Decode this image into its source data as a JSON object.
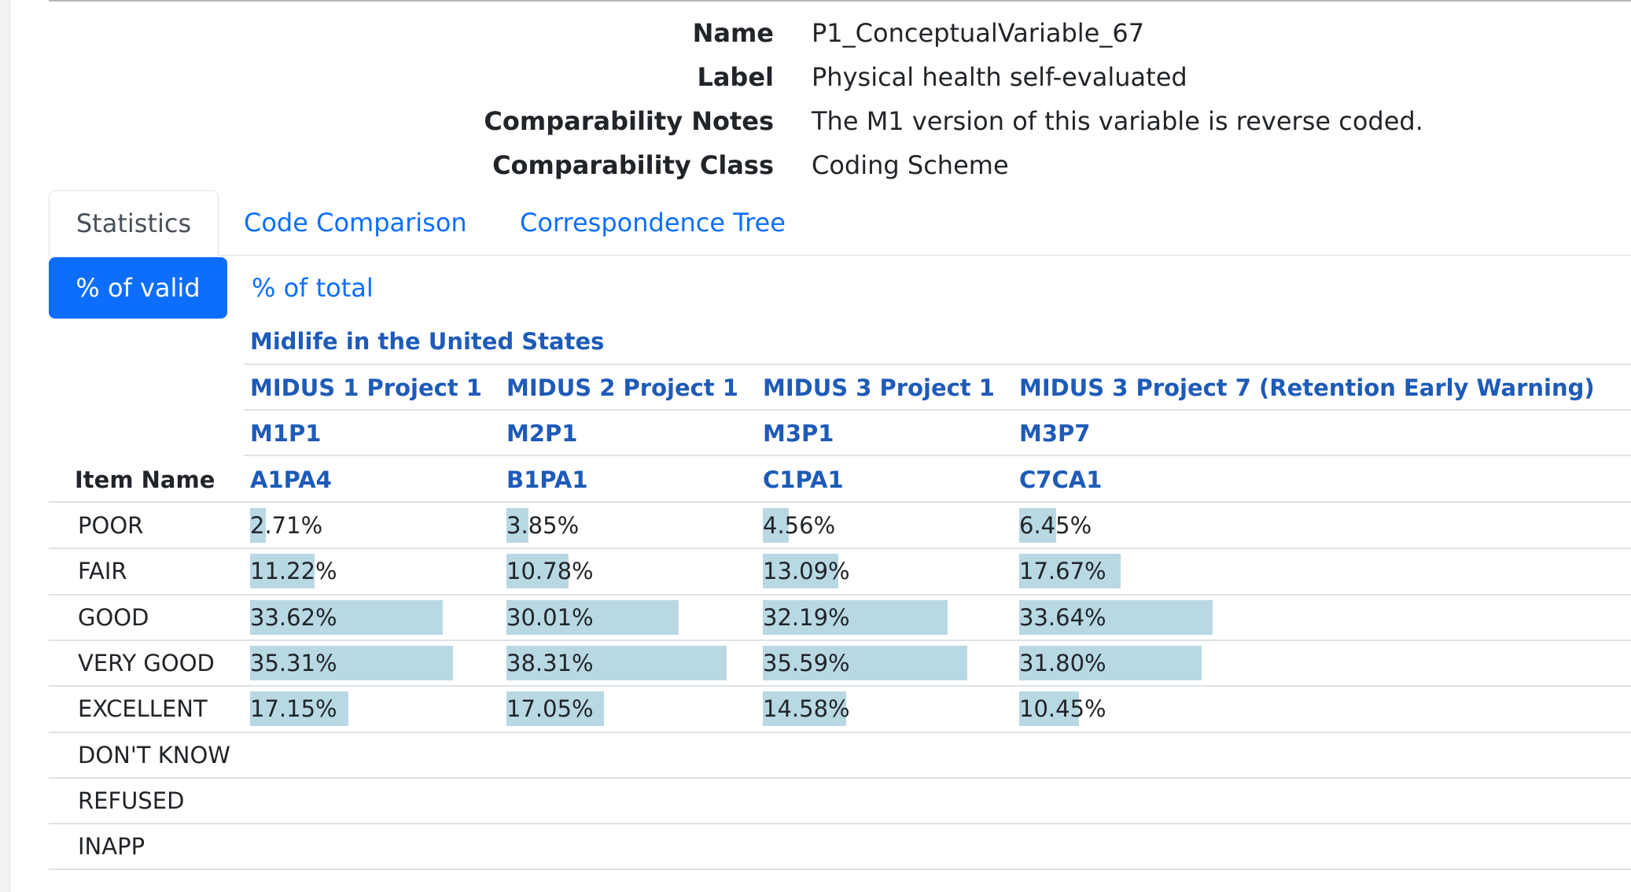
{
  "meta": {
    "name_key": "Name",
    "name_val": "P1_ConceptualVariable_67",
    "label_key": "Label",
    "label_val": "Physical health self-evaluated",
    "notes_key": "Comparability Notes",
    "notes_val": "The M1 version of this variable is reverse coded.",
    "class_key": "Comparability Class",
    "class_val": "Coding Scheme"
  },
  "tabs": [
    "Statistics",
    "Code Comparison",
    "Correspondence Tree"
  ],
  "pills": [
    "% of valid",
    "% of total"
  ],
  "table": {
    "study": "Midlife in the United States",
    "item_header": "Item Name",
    "columns": [
      {
        "project": "MIDUS 1 Project 1",
        "code": "M1P1",
        "variable": "A1PA4"
      },
      {
        "project": "MIDUS 2 Project 1",
        "code": "M2P1",
        "variable": "B1PA1"
      },
      {
        "project": "MIDUS 3 Project 1",
        "code": "M3P1",
        "variable": "C1PA1"
      },
      {
        "project": "MIDUS 3 Project 7 (Retention Early Warning)",
        "code": "M3P7",
        "variable": "C7CA1"
      }
    ],
    "rows": [
      {
        "label": "POOR",
        "values": [
          "2.71%",
          "3.85%",
          "4.56%",
          "6.45%"
        ],
        "pct": [
          2.71,
          3.85,
          4.56,
          6.45
        ]
      },
      {
        "label": "FAIR",
        "values": [
          "11.22%",
          "10.78%",
          "13.09%",
          "17.67%"
        ],
        "pct": [
          11.22,
          10.78,
          13.09,
          17.67
        ]
      },
      {
        "label": "GOOD",
        "values": [
          "33.62%",
          "30.01%",
          "32.19%",
          "33.64%"
        ],
        "pct": [
          33.62,
          30.01,
          32.19,
          33.64
        ]
      },
      {
        "label": "VERY GOOD",
        "values": [
          "35.31%",
          "38.31%",
          "35.59%",
          "31.80%"
        ],
        "pct": [
          35.31,
          38.31,
          35.59,
          31.8
        ]
      },
      {
        "label": "EXCELLENT",
        "values": [
          "17.15%",
          "17.05%",
          "14.58%",
          "10.45%"
        ],
        "pct": [
          17.15,
          17.05,
          14.58,
          10.45
        ]
      },
      {
        "label": "DON'T KNOW",
        "values": [
          "",
          "",
          "",
          ""
        ],
        "pct": [
          0,
          0,
          0,
          0
        ]
      },
      {
        "label": "REFUSED",
        "values": [
          "",
          "",
          "",
          ""
        ],
        "pct": [
          0,
          0,
          0,
          0
        ]
      },
      {
        "label": "INAPP",
        "values": [
          "",
          "",
          "",
          ""
        ],
        "pct": [
          0,
          0,
          0,
          0
        ]
      }
    ]
  }
}
